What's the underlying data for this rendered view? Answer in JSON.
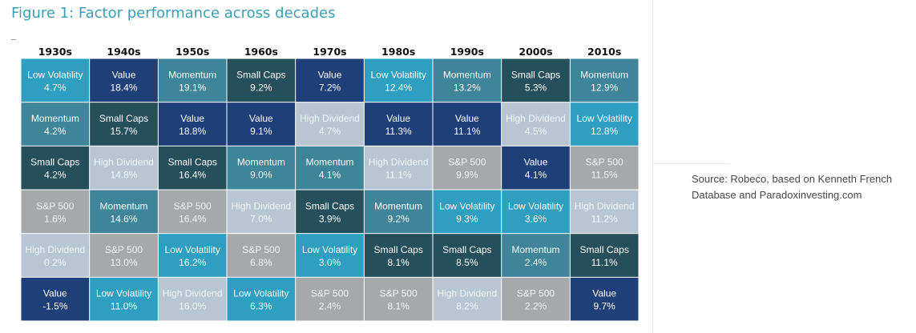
{
  "figure_title": "Figure 1: Factor performance across decades",
  "source_note": "Source: Robeco, based on Kenneth French Database and Paradoxinvesting.com",
  "colors": {
    "Low Volatility": "#2e9fc0",
    "Value": "#1f3f78",
    "Momentum": "#3e8599",
    "Small Caps": "#264f5c",
    "High Dividend": "#b8c6d4",
    "S&P 500": "#a6a9ac"
  },
  "chart_data": {
    "type": "table",
    "title": "Figure 1: Factor performance across decades",
    "columns": [
      "1930s",
      "1940s",
      "1950s",
      "1960s",
      "1970s",
      "1980s",
      "1990s",
      "2000s",
      "2010s"
    ],
    "rank_rows": 6,
    "cells": [
      [
        {
          "factor": "Low Volatility",
          "value": "4.7%"
        },
        {
          "factor": "Momentum",
          "value": "4.2%"
        },
        {
          "factor": "Small Caps",
          "value": "4.2%"
        },
        {
          "factor": "S&P 500",
          "value": "1.6%"
        },
        {
          "factor": "High Dividend",
          "value": "0.2%"
        },
        {
          "factor": "Value",
          "value": "-1.5%"
        }
      ],
      [
        {
          "factor": "Value",
          "value": "18.4%"
        },
        {
          "factor": "Small Caps",
          "value": "15.7%"
        },
        {
          "factor": "High Dividend",
          "value": "14.8%"
        },
        {
          "factor": "Momentum",
          "value": "14.6%"
        },
        {
          "factor": "S&P 500",
          "value": "13.0%"
        },
        {
          "factor": "Low Volatility",
          "value": "11.0%"
        }
      ],
      [
        {
          "factor": "Momentum",
          "value": "19.1%"
        },
        {
          "factor": "Value",
          "value": "18.8%"
        },
        {
          "factor": "Small Caps",
          "value": "16.4%"
        },
        {
          "factor": "S&P 500",
          "value": "16.4%"
        },
        {
          "factor": "Low Volatility",
          "value": "16.2%"
        },
        {
          "factor": "High Dividend",
          "value": "16.0%"
        }
      ],
      [
        {
          "factor": "Small Caps",
          "value": "9.2%"
        },
        {
          "factor": "Value",
          "value": "9.1%"
        },
        {
          "factor": "Momentum",
          "value": "9.0%"
        },
        {
          "factor": "High Dividend",
          "value": "7.0%"
        },
        {
          "factor": "S&P 500",
          "value": "6.8%"
        },
        {
          "factor": "Low Volatility",
          "value": "6.3%"
        }
      ],
      [
        {
          "factor": "Value",
          "value": "7.2%"
        },
        {
          "factor": "High Dividend",
          "value": "4.7%"
        },
        {
          "factor": "Momentum",
          "value": "4.1%"
        },
        {
          "factor": "Small Caps",
          "value": "3.9%"
        },
        {
          "factor": "Low Volatility",
          "value": "3.0%"
        },
        {
          "factor": "S&P 500",
          "value": "2.4%"
        }
      ],
      [
        {
          "factor": "Low Volatility",
          "value": "12.4%"
        },
        {
          "factor": "Value",
          "value": "11.3%"
        },
        {
          "factor": "High Dividend",
          "value": "11.1%"
        },
        {
          "factor": "Momentum",
          "value": "9.2%"
        },
        {
          "factor": "Small Caps",
          "value": "8.1%"
        },
        {
          "factor": "S&P 500",
          "value": "8.1%"
        }
      ],
      [
        {
          "factor": "Momentum",
          "value": "13.2%"
        },
        {
          "factor": "Value",
          "value": "11.1%"
        },
        {
          "factor": "S&P 500",
          "value": "9.9%"
        },
        {
          "factor": "Low Volatility",
          "value": "9.3%"
        },
        {
          "factor": "Small Caps",
          "value": "8.5%"
        },
        {
          "factor": "High Dividend",
          "value": "8.2%"
        }
      ],
      [
        {
          "factor": "Small Caps",
          "value": "5.3%"
        },
        {
          "factor": "High Dividend",
          "value": "4.5%"
        },
        {
          "factor": "Value",
          "value": "4.1%"
        },
        {
          "factor": "Low Volatility",
          "value": "3.6%"
        },
        {
          "factor": "Momentum",
          "value": "2.4%"
        },
        {
          "factor": "S&P 500",
          "value": "2.2%"
        }
      ],
      [
        {
          "factor": "Momentum",
          "value": "12.9%"
        },
        {
          "factor": "Low Volatility",
          "value": "12.8%"
        },
        {
          "factor": "S&P 500",
          "value": "11.5%"
        },
        {
          "factor": "High Dividend",
          "value": "11.2%"
        },
        {
          "factor": "Small Caps",
          "value": "11.1%"
        },
        {
          "factor": "Value",
          "value": "9.7%"
        }
      ]
    ]
  }
}
